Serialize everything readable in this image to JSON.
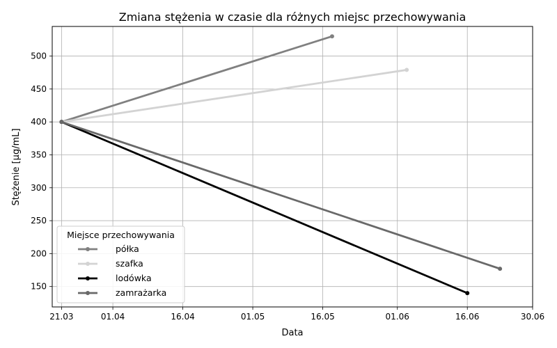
{
  "chart_data": {
    "type": "line",
    "title": "Zmiana stężenia w czasie dla różnych miejsc przechowywania",
    "xlabel": "Data",
    "ylabel": "Stężenie [µg/mL]",
    "x_axis_type": "date",
    "xlim": [
      "2024-03-19",
      "2024-06-30"
    ],
    "ylim": [
      119,
      545
    ],
    "x_ticks": [
      {
        "date": "2024-03-21",
        "label": "21.03"
      },
      {
        "date": "2024-04-01",
        "label": "01.04"
      },
      {
        "date": "2024-04-16",
        "label": "16.04"
      },
      {
        "date": "2024-05-01",
        "label": "01.05"
      },
      {
        "date": "2024-05-16",
        "label": "16.05"
      },
      {
        "date": "2024-06-01",
        "label": "01.06"
      },
      {
        "date": "2024-06-16",
        "label": "16.06"
      },
      {
        "date": "2024-06-30",
        "label": "30.06"
      }
    ],
    "y_ticks": [
      150,
      200,
      250,
      300,
      350,
      400,
      450,
      500
    ],
    "grid": true,
    "legend": {
      "title": "Miejsce przechowywania",
      "position": "lower-left"
    },
    "series": [
      {
        "name": "półka",
        "color": "#808080",
        "points": [
          {
            "x": "2024-03-21",
            "y": 400
          },
          {
            "x": "2024-05-18",
            "y": 530
          }
        ]
      },
      {
        "name": "szafka",
        "color": "#d3d3d3",
        "points": [
          {
            "x": "2024-03-21",
            "y": 400
          },
          {
            "x": "2024-06-03",
            "y": 479
          }
        ]
      },
      {
        "name": "lodówka",
        "color": "#000000",
        "points": [
          {
            "x": "2024-03-21",
            "y": 400
          },
          {
            "x": "2024-06-16",
            "y": 140
          }
        ]
      },
      {
        "name": "zamrażarka",
        "color": "#696969",
        "points": [
          {
            "x": "2024-03-21",
            "y": 400
          },
          {
            "x": "2024-06-23",
            "y": 177
          }
        ]
      }
    ]
  }
}
